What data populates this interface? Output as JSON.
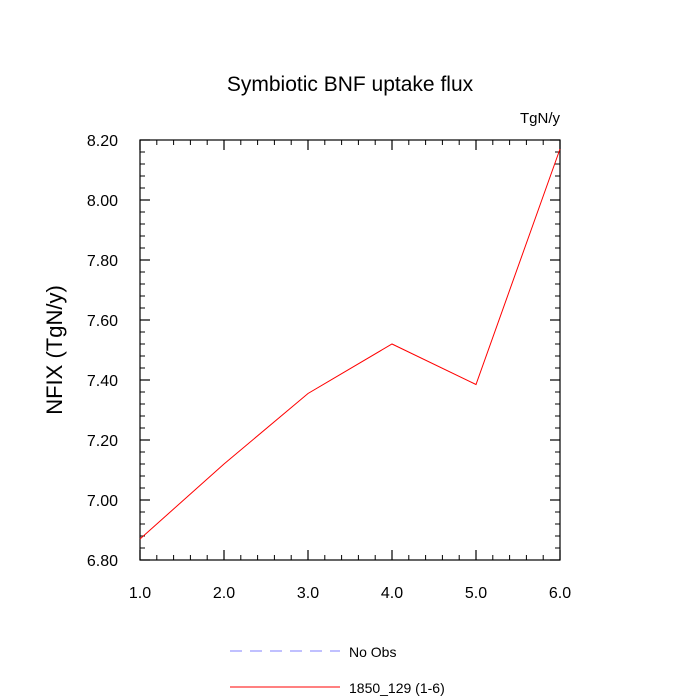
{
  "chart_data": {
    "type": "line",
    "title": "Symbiotic BNF uptake flux",
    "units_label": "TgN/y",
    "ylabel": "NFIX  (TgN/y)",
    "xlabel": "",
    "xlim": [
      1.0,
      6.0
    ],
    "ylim": [
      6.8,
      8.2
    ],
    "x_ticks": [
      "1.0",
      "2.0",
      "3.0",
      "4.0",
      "5.0",
      "6.0"
    ],
    "y_ticks": [
      "6.80",
      "7.00",
      "7.20",
      "7.40",
      "7.60",
      "7.80",
      "8.00",
      "8.20"
    ],
    "series": [
      {
        "name": "1850_129 (1-6)",
        "color": "#ff0000",
        "dash": "solid",
        "x": [
          1.0,
          2.0,
          3.0,
          4.0,
          5.0,
          6.0
        ],
        "y": [
          6.87,
          7.12,
          7.355,
          7.52,
          7.385,
          8.17
        ]
      }
    ],
    "legend": [
      {
        "label": "No Obs",
        "color": "#8080ff",
        "dash": "dashed"
      },
      {
        "label": "1850_129 (1-6)",
        "color": "#ff0000",
        "dash": "solid"
      }
    ],
    "legend_position": "bottom-center",
    "grid": false
  }
}
